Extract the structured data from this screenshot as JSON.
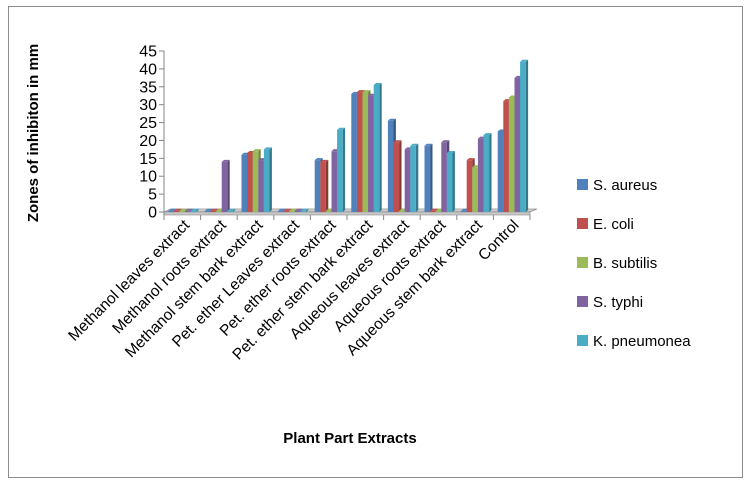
{
  "chart_data": {
    "type": "bar",
    "title": "",
    "xlabel": "Plant Part Extracts",
    "ylabel": "Zones of inhibiton in mm",
    "ylim": [
      0,
      45
    ],
    "yticks": [
      0,
      5,
      10,
      15,
      20,
      25,
      30,
      35,
      40,
      45
    ],
    "grid": false,
    "legend_position": "right",
    "categories": [
      "Methanol leaves extract",
      "Methanol roots extract",
      "Methanol stem bark extract",
      "Pet. ether Leaves extract",
      "Pet. ether roots extract",
      "Pet. ether stem bark extract",
      "Aqueous leaves extract",
      "Aqueous roots extract",
      "Aqueous stem bark extract",
      "Control"
    ],
    "series": [
      {
        "name": "S. aureus",
        "color": "#4F81BD",
        "values": [
          0,
          0,
          16,
          0,
          14.5,
          33,
          25.5,
          18.5,
          0,
          22.5
        ]
      },
      {
        "name": "E. coli",
        "color": "#C0504D",
        "values": [
          0,
          0,
          16.5,
          0,
          14,
          33.5,
          19.5,
          0,
          14.5,
          31
        ]
      },
      {
        "name": "B. subtilis",
        "color": "#9BBB59",
        "values": [
          0,
          0,
          17,
          0,
          0,
          33.5,
          0,
          0,
          12.5,
          32
        ]
      },
      {
        "name": "S. typhi",
        "color": "#8064A2",
        "values": [
          0,
          14,
          14.5,
          0,
          17,
          32.5,
          17.5,
          19.5,
          20.5,
          37.5
        ]
      },
      {
        "name": "K. pneumonea",
        "color": "#4BACC6",
        "values": [
          0,
          0,
          17.5,
          0,
          23,
          35.5,
          18.5,
          16.5,
          21.5,
          42
        ]
      }
    ]
  }
}
